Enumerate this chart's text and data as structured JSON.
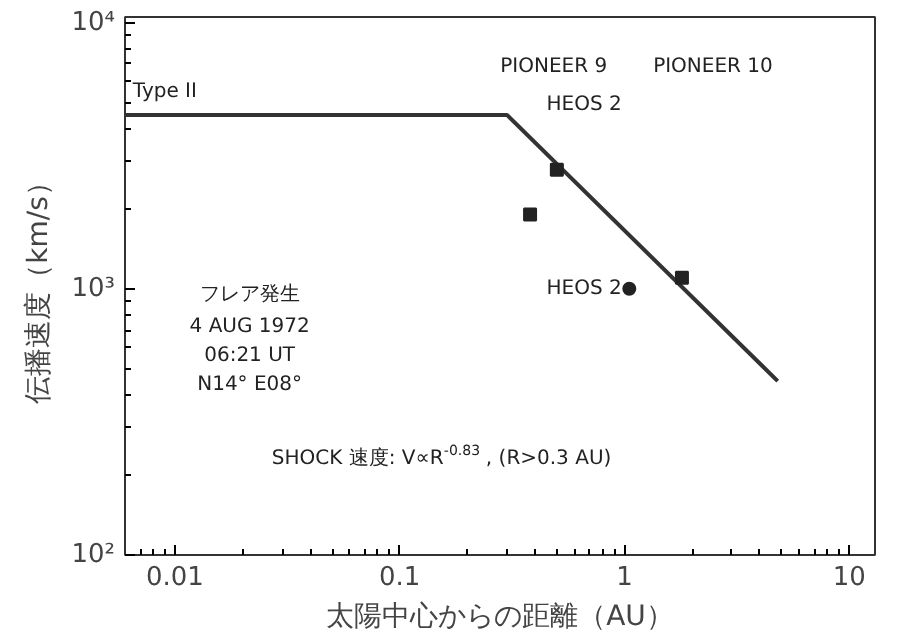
{
  "chart_data": {
    "type": "line",
    "xlabel": "太陽中心からの距離（AU）",
    "ylabel": "伝播速度（km/s）",
    "log": "xy",
    "grid": false,
    "xlim": [
      0.006,
      13
    ],
    "ylim": [
      100,
      10500
    ],
    "xticks": [
      0.01,
      0.1,
      1,
      10
    ],
    "yticks": [
      {
        "value": 100,
        "label": "10²"
      },
      {
        "value": 1000,
        "label": "10³"
      },
      {
        "value": 10000,
        "label": "10⁴"
      }
    ],
    "series": [
      {
        "color": "#333333",
        "x": [
          0.006,
          0.3,
          4.8
        ],
        "values": [
          4500,
          4500,
          450
        ],
        "line_style": "solid"
      },
      {
        "type": "scatter",
        "color": "#222222",
        "marker": "square",
        "x": [
          0.5,
          0.38,
          1.8
        ],
        "values": [
          2800,
          1900,
          1100
        ]
      },
      {
        "type": "scatter",
        "color": "#222222",
        "marker": "circle",
        "x": [
          1.05
        ],
        "values": [
          1000
        ]
      }
    ],
    "annotations": [
      "Type II",
      "PIONEER 9",
      "HEOS 2",
      "PIONEER 10",
      "HEOS 2",
      "フレア発生",
      "4 AUG 1972",
      "06:21 UT",
      "N14° E08°",
      "SHOCK 速度: V∝R$^{-0.83}$, (R>0.3 AU)"
    ]
  }
}
